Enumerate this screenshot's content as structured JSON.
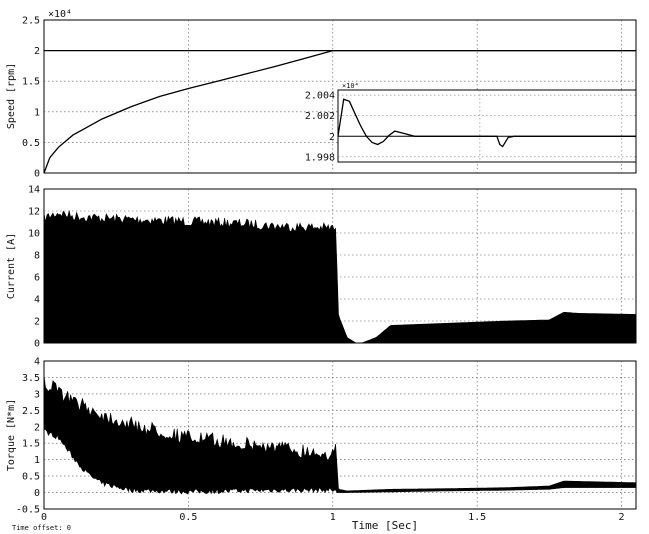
{
  "chart_data": [
    {
      "type": "line",
      "ylabel": "Speed [rpm]",
      "yexponent": "×10⁴",
      "xlim": [
        0,
        2.05
      ],
      "ylim": [
        0,
        2.5
      ],
      "yticks": [
        0,
        0.5,
        1,
        1.5,
        2,
        2.5
      ],
      "yticklabels": [
        "0",
        "0.5",
        "1",
        "1.5",
        "2",
        "2.5"
      ],
      "grid": true,
      "series": [
        {
          "x": [
            0,
            0.02,
            0.05,
            0.1,
            0.2,
            0.3,
            0.4,
            0.5,
            0.6,
            0.7,
            0.8,
            0.9,
            1.0,
            1.02,
            2.05
          ],
          "values": [
            0,
            0.25,
            0.42,
            0.62,
            0.88,
            1.08,
            1.25,
            1.38,
            1.5,
            1.62,
            1.74,
            1.87,
            2.0,
            2.0,
            2.0
          ]
        },
        {
          "x": [
            0,
            2.05
          ],
          "values": [
            2,
            2
          ]
        }
      ],
      "inset": {
        "yexponent": "×10⁴",
        "yticklabels": [
          "2.004",
          "2.002",
          "2",
          "1.998"
        ],
        "ylim": [
          1.9975,
          2.0045
        ],
        "xlim": [
          1.0,
          2.05
        ],
        "series": [
          {
            "x": [
              1.0,
              1.02,
              1.04,
              1.06,
              1.08,
              1.1,
              1.12,
              1.14,
              1.16,
              1.18,
              1.2,
              1.23,
              1.27,
              1.3,
              1.4,
              1.56,
              1.57,
              1.58,
              1.6,
              1.62,
              2.05
            ],
            "values": [
              2.0,
              2.0036,
              2.0034,
              2.0022,
              2.001,
              2.0,
              1.9994,
              1.9992,
              1.9995,
              2.0001,
              2.0005,
              2.0003,
              2.0,
              2.0,
              2.0,
              2.0,
              1.9992,
              1.999,
              1.9999,
              2.0,
              2.0
            ]
          }
        ]
      }
    },
    {
      "type": "area",
      "ylabel": "Current [A]",
      "xlim": [
        0,
        2.05
      ],
      "ylim": [
        0,
        14
      ],
      "yticks": [
        0,
        2,
        4,
        6,
        8,
        10,
        12,
        14
      ],
      "yticklabels": [
        "0",
        "2",
        "4",
        "6",
        "8",
        "10",
        "12",
        "14"
      ],
      "grid": true,
      "envelope": {
        "x": [
          0,
          0.05,
          0.1,
          0.2,
          0.3,
          0.4,
          0.5,
          0.6,
          0.7,
          0.8,
          0.9,
          1.0,
          1.01,
          1.02,
          1.05,
          1.08,
          1.1,
          1.15,
          1.2,
          1.3,
          1.4,
          1.5,
          1.6,
          1.75,
          1.8,
          1.85,
          2.05
        ],
        "values": [
          11.8,
          12.3,
          12.0,
          11.8,
          11.7,
          11.6,
          11.5,
          11.4,
          11.3,
          11.1,
          11.0,
          10.9,
          10.8,
          2.5,
          0.5,
          0.0,
          0.0,
          0.5,
          1.6,
          1.7,
          1.8,
          1.9,
          2.0,
          2.1,
          2.8,
          2.7,
          2.6
        ]
      }
    },
    {
      "type": "area",
      "ylabel": "Torque [N*m]",
      "xlabel": "Time [Sec]",
      "xlim": [
        0,
        2.05
      ],
      "ylim": [
        -0.5,
        4
      ],
      "yticks": [
        -0.5,
        0,
        0.5,
        1,
        1.5,
        2,
        2.5,
        3,
        3.5,
        4
      ],
      "yticklabels": [
        "-0.5",
        "0",
        "0.5",
        "1",
        "1.5",
        "2",
        "2.5",
        "3",
        "3.5",
        "4"
      ],
      "xticks": [
        0,
        0.5,
        1,
        1.5,
        2
      ],
      "xticklabels": [
        "0",
        "0.5",
        "1",
        "1.5",
        "2"
      ],
      "grid": true,
      "upper": {
        "x": [
          0,
          0.05,
          0.1,
          0.15,
          0.2,
          0.3,
          0.4,
          0.5,
          0.6,
          0.7,
          0.8,
          0.9,
          1.0,
          1.01,
          1.02,
          1.05,
          1.2,
          1.4,
          1.6,
          1.75,
          1.8,
          2.05
        ],
        "values": [
          3.6,
          3.3,
          3.0,
          2.8,
          2.6,
          2.3,
          2.1,
          1.9,
          1.8,
          1.7,
          1.6,
          1.5,
          1.4,
          1.5,
          0.1,
          0.05,
          0.1,
          0.12,
          0.15,
          0.2,
          0.35,
          0.3
        ]
      },
      "lower": {
        "x": [
          0,
          0.05,
          0.1,
          0.15,
          0.2,
          0.3,
          0.5,
          0.8,
          1.0,
          1.01,
          1.02,
          1.05,
          1.2,
          1.4,
          1.6,
          1.75,
          1.8,
          2.05
        ],
        "values": [
          1.8,
          1.6,
          1.0,
          0.5,
          0.2,
          0.0,
          -0.05,
          0.0,
          0.0,
          0.0,
          0.0,
          0.0,
          0.02,
          0.05,
          0.07,
          0.1,
          0.15,
          0.15
        ]
      }
    }
  ],
  "footnote": "Time offset: 0"
}
